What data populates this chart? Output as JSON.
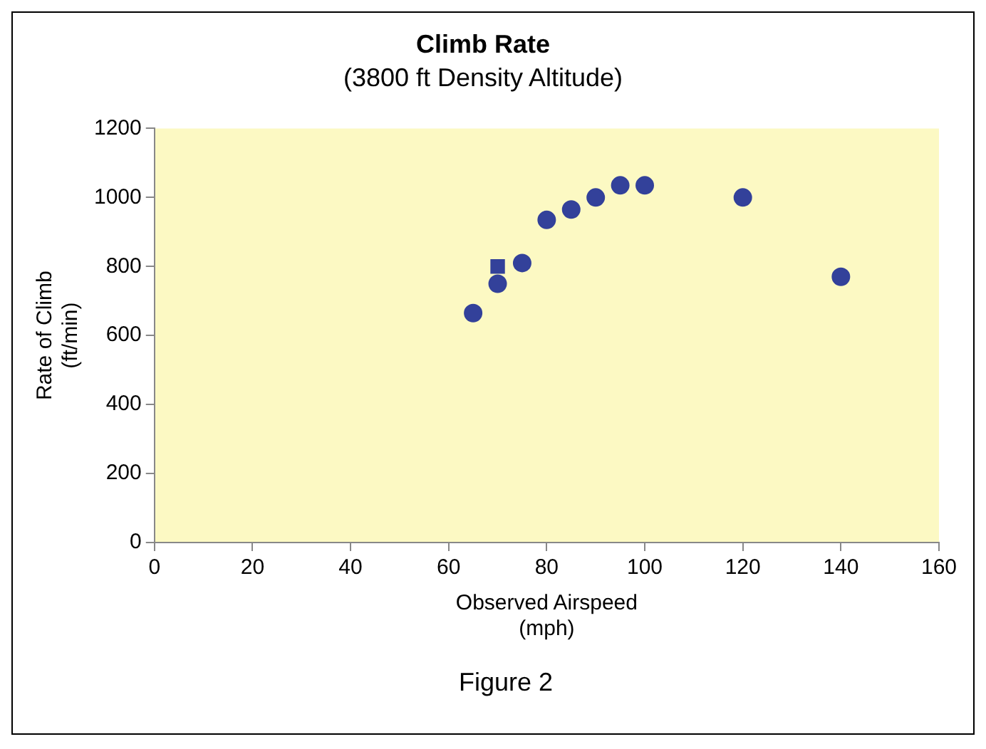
{
  "chart_data": {
    "type": "scatter",
    "title": "Climb Rate",
    "subtitle": "(3800 ft Density Altitude)",
    "xlabel": "Observed Airspeed (mph)",
    "ylabel": "Rate of Climb (ft/min)",
    "annotations": [
      "Figure 2"
    ],
    "series": [
      {
        "color": "#33419a",
        "marker": "circle",
        "x": [
          65,
          70,
          75,
          80,
          85,
          90,
          95,
          100,
          120,
          140
        ],
        "values": [
          665,
          750,
          810,
          935,
          965,
          1000,
          1035,
          1035,
          1000,
          770
        ]
      },
      {
        "color": "#33419a",
        "marker": "square",
        "x": [
          70
        ],
        "values": [
          800
        ]
      }
    ],
    "xlim": [
      0,
      160
    ],
    "xticks": [
      0,
      20,
      40,
      60,
      80,
      100,
      120,
      140,
      160
    ],
    "ylim": [
      0,
      1200
    ],
    "yticks": [
      0,
      200,
      400,
      600,
      800,
      1000,
      1200
    ],
    "grid": false,
    "legend": false
  }
}
